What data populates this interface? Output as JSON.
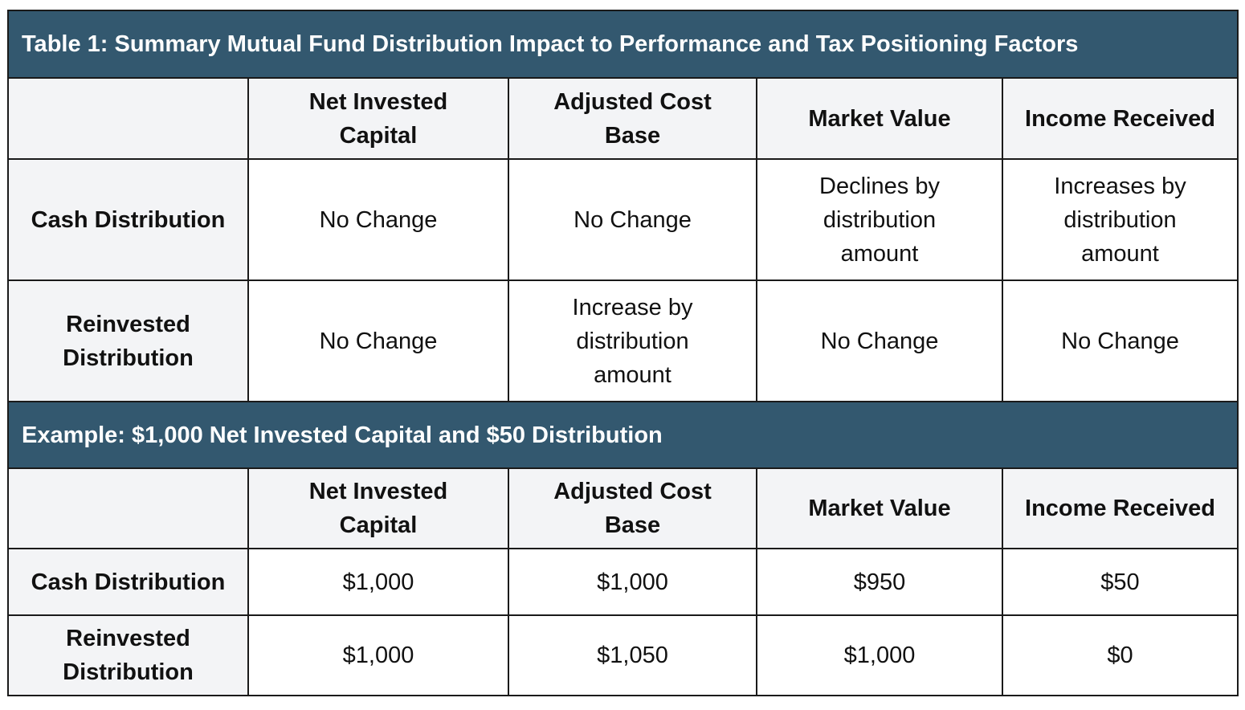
{
  "table1": {
    "title": "Table 1: Summary Mutual Fund Distribution Impact to Performance and Tax Positioning Factors",
    "columns": [
      "",
      "Net Invested Capital",
      "Adjusted Cost Base",
      "Market Value",
      "Income Received"
    ],
    "rows": [
      {
        "label": "Cash Distribution",
        "values": [
          "No Change",
          "No Change",
          "Declines by distribution amount",
          "Increases by distribution amount"
        ]
      },
      {
        "label": "Reinvested Distribution",
        "values": [
          "No Change",
          "Increase by distribution amount",
          "No Change",
          "No Change"
        ]
      }
    ]
  },
  "example": {
    "title": "Example: $1,000 Net Invested Capital and $50 Distribution",
    "columns": [
      "",
      "Net Invested Capital",
      "Adjusted Cost Base",
      "Market Value",
      "Income Received"
    ],
    "rows": [
      {
        "label": "Cash Distribution",
        "values": [
          "$1,000",
          "$1,000",
          "$950",
          "$50"
        ]
      },
      {
        "label": "Reinvested Distribution",
        "values": [
          "$1,000",
          "$1,050",
          "$1,000",
          "$0"
        ]
      }
    ]
  },
  "colors": {
    "header_bg": "#33586f",
    "label_bg": "#f3f4f6",
    "border": "#1a1a1a"
  }
}
